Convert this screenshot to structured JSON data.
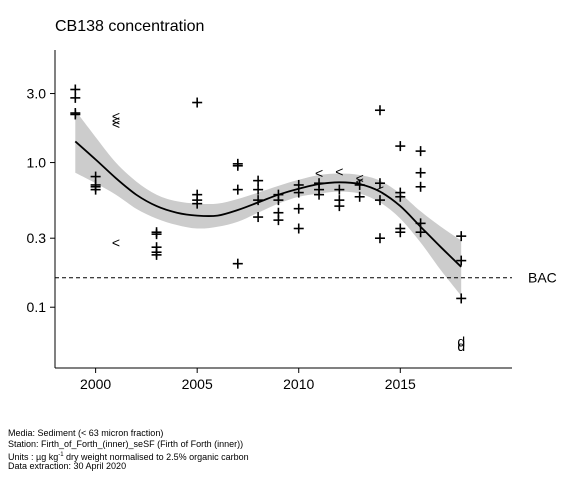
{
  "chart_data": {
    "type": "scatter",
    "title": "CB138 concentration",
    "y_scale": "log",
    "xlim": [
      1998,
      2020.5
    ],
    "ylim": [
      0.038,
      6.0
    ],
    "x_ticks": [
      2000,
      2005,
      2010,
      2015
    ],
    "x_tick_labels": [
      "2000",
      "2005",
      "2010",
      "2015"
    ],
    "y_ticks": [
      0.1,
      0.3,
      1.0,
      3.0
    ],
    "y_tick_labels": [
      "0.1",
      "0.3",
      "1.0",
      "3.0"
    ],
    "grid": false,
    "legend": "none",
    "reference_line": {
      "label": "BAC",
      "value": 0.16
    },
    "points": [
      {
        "x": 1999,
        "y": 3.2,
        "m": "+"
      },
      {
        "x": 1999,
        "y": 2.8,
        "m": "+"
      },
      {
        "x": 1999,
        "y": 2.2,
        "m": "+"
      },
      {
        "x": 1999,
        "y": 2.15,
        "m": "+"
      },
      {
        "x": 2000,
        "y": 0.8,
        "m": "+"
      },
      {
        "x": 2000,
        "y": 0.7,
        "m": "+"
      },
      {
        "x": 2000,
        "y": 0.68,
        "m": "+"
      },
      {
        "x": 2000,
        "y": 0.65,
        "m": "+"
      },
      {
        "x": 2001,
        "y": 2.1,
        "m": "<"
      },
      {
        "x": 2001,
        "y": 1.95,
        "m": "<"
      },
      {
        "x": 2001,
        "y": 1.85,
        "m": "<"
      },
      {
        "x": 2001,
        "y": 0.28,
        "m": "<"
      },
      {
        "x": 2003,
        "y": 0.33,
        "m": "+"
      },
      {
        "x": 2003,
        "y": 0.32,
        "m": "+"
      },
      {
        "x": 2003,
        "y": 0.26,
        "m": "+"
      },
      {
        "x": 2003,
        "y": 0.24,
        "m": "+"
      },
      {
        "x": 2003,
        "y": 0.23,
        "m": "+"
      },
      {
        "x": 2005,
        "y": 2.6,
        "m": "+"
      },
      {
        "x": 2005,
        "y": 0.6,
        "m": "+"
      },
      {
        "x": 2005,
        "y": 0.55,
        "m": "+"
      },
      {
        "x": 2005,
        "y": 0.52,
        "m": "+"
      },
      {
        "x": 2007,
        "y": 0.98,
        "m": "+"
      },
      {
        "x": 2007,
        "y": 0.95,
        "m": "+"
      },
      {
        "x": 2007,
        "y": 0.65,
        "m": "+"
      },
      {
        "x": 2007,
        "y": 0.2,
        "m": "+"
      },
      {
        "x": 2008,
        "y": 0.75,
        "m": "+"
      },
      {
        "x": 2008,
        "y": 0.65,
        "m": "+"
      },
      {
        "x": 2008,
        "y": 0.55,
        "m": "+"
      },
      {
        "x": 2008,
        "y": 0.42,
        "m": "+"
      },
      {
        "x": 2009,
        "y": 0.6,
        "m": "+"
      },
      {
        "x": 2009,
        "y": 0.55,
        "m": "+"
      },
      {
        "x": 2009,
        "y": 0.45,
        "m": "+"
      },
      {
        "x": 2009,
        "y": 0.4,
        "m": "+"
      },
      {
        "x": 2010,
        "y": 0.7,
        "m": "+"
      },
      {
        "x": 2010,
        "y": 0.62,
        "m": "+"
      },
      {
        "x": 2010,
        "y": 0.48,
        "m": "+"
      },
      {
        "x": 2010,
        "y": 0.35,
        "m": "+"
      },
      {
        "x": 2011,
        "y": 0.85,
        "m": "<"
      },
      {
        "x": 2011,
        "y": 0.72,
        "m": "+"
      },
      {
        "x": 2011,
        "y": 0.65,
        "m": "+"
      },
      {
        "x": 2011,
        "y": 0.6,
        "m": "+"
      },
      {
        "x": 2012,
        "y": 0.87,
        "m": "<"
      },
      {
        "x": 2012,
        "y": 0.65,
        "m": "+"
      },
      {
        "x": 2012,
        "y": 0.55,
        "m": "+"
      },
      {
        "x": 2012,
        "y": 0.5,
        "m": "+"
      },
      {
        "x": 2013,
        "y": 0.78,
        "m": "<"
      },
      {
        "x": 2013,
        "y": 0.74,
        "m": "<"
      },
      {
        "x": 2013,
        "y": 0.7,
        "m": "+"
      },
      {
        "x": 2013,
        "y": 0.58,
        "m": "+"
      },
      {
        "x": 2014,
        "y": 2.3,
        "m": "+"
      },
      {
        "x": 2014,
        "y": 0.72,
        "m": "+"
      },
      {
        "x": 2014,
        "y": 0.65,
        "m": "<"
      },
      {
        "x": 2014,
        "y": 0.55,
        "m": "+"
      },
      {
        "x": 2014,
        "y": 0.3,
        "m": "+"
      },
      {
        "x": 2015,
        "y": 1.3,
        "m": "+"
      },
      {
        "x": 2015,
        "y": 0.62,
        "m": "+"
      },
      {
        "x": 2015,
        "y": 0.58,
        "m": "+"
      },
      {
        "x": 2015,
        "y": 0.35,
        "m": "+"
      },
      {
        "x": 2015,
        "y": 0.33,
        "m": "+"
      },
      {
        "x": 2016,
        "y": 1.2,
        "m": "+"
      },
      {
        "x": 2016,
        "y": 0.85,
        "m": "+"
      },
      {
        "x": 2016,
        "y": 0.68,
        "m": "+"
      },
      {
        "x": 2016,
        "y": 0.38,
        "m": "+"
      },
      {
        "x": 2016,
        "y": 0.33,
        "m": "+"
      },
      {
        "x": 2018,
        "y": 0.31,
        "m": "+"
      },
      {
        "x": 2018,
        "y": 0.21,
        "m": "+"
      },
      {
        "x": 2018,
        "y": 0.115,
        "m": "+"
      },
      {
        "x": 2018,
        "y": 0.058,
        "m": "d"
      },
      {
        "x": 2018,
        "y": 0.054,
        "m": "d"
      }
    ],
    "trend": [
      {
        "x": 1999,
        "y": 1.4,
        "lo": 0.85,
        "hi": 2.3
      },
      {
        "x": 2000,
        "y": 1.05,
        "lo": 0.72,
        "hi": 1.5
      },
      {
        "x": 2001,
        "y": 0.78,
        "lo": 0.6,
        "hi": 1.0
      },
      {
        "x": 2002,
        "y": 0.6,
        "lo": 0.48,
        "hi": 0.74
      },
      {
        "x": 2003,
        "y": 0.5,
        "lo": 0.41,
        "hi": 0.6
      },
      {
        "x": 2004,
        "y": 0.45,
        "lo": 0.37,
        "hi": 0.54
      },
      {
        "x": 2005,
        "y": 0.43,
        "lo": 0.35,
        "hi": 0.52
      },
      {
        "x": 2006,
        "y": 0.43,
        "lo": 0.36,
        "hi": 0.52
      },
      {
        "x": 2007,
        "y": 0.47,
        "lo": 0.39,
        "hi": 0.56
      },
      {
        "x": 2008,
        "y": 0.53,
        "lo": 0.45,
        "hi": 0.62
      },
      {
        "x": 2009,
        "y": 0.6,
        "lo": 0.52,
        "hi": 0.69
      },
      {
        "x": 2010,
        "y": 0.66,
        "lo": 0.58,
        "hi": 0.76
      },
      {
        "x": 2011,
        "y": 0.71,
        "lo": 0.61,
        "hi": 0.82
      },
      {
        "x": 2012,
        "y": 0.73,
        "lo": 0.63,
        "hi": 0.84
      },
      {
        "x": 2013,
        "y": 0.71,
        "lo": 0.61,
        "hi": 0.82
      },
      {
        "x": 2014,
        "y": 0.63,
        "lo": 0.53,
        "hi": 0.75
      },
      {
        "x": 2015,
        "y": 0.5,
        "lo": 0.41,
        "hi": 0.61
      },
      {
        "x": 2016,
        "y": 0.36,
        "lo": 0.28,
        "hi": 0.46
      },
      {
        "x": 2017,
        "y": 0.26,
        "lo": 0.18,
        "hi": 0.36
      },
      {
        "x": 2018,
        "y": 0.19,
        "lo": 0.12,
        "hi": 0.29
      }
    ]
  },
  "footer": {
    "media": "Media: Sediment (< 63 micron fraction)",
    "station": "Station: Firth_of_Forth_(inner)_seSF (Firth of Forth (inner))",
    "units_prefix": "Units : µg kg",
    "units_sup": "-1",
    "units_suffix": " dry weight normalised to 2.5% organic carbon",
    "extraction": "Data extraction: 30 April 2020"
  }
}
